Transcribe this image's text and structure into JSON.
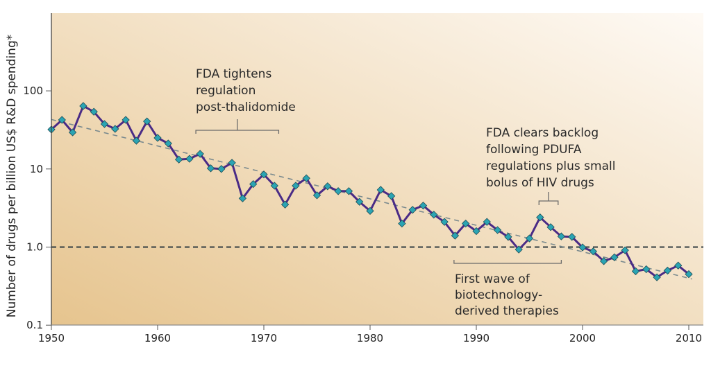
{
  "chart_data": {
    "type": "line",
    "title": "",
    "xlabel": "",
    "ylabel": "Number of drugs per billion US$ R&D spending*",
    "yscale": "log",
    "xlim": [
      1950,
      2011.5
    ],
    "ylim": [
      0.1,
      500
    ],
    "x_ticks": [
      1950,
      1960,
      1970,
      1980,
      1990,
      2000,
      2010
    ],
    "x_tick_labels": [
      "1950",
      "1960",
      "1970",
      "1980",
      "1990",
      "2000",
      "2010"
    ],
    "y_ticks": [
      0.1,
      1.0,
      10,
      100
    ],
    "y_tick_labels": [
      "0.1",
      "1.0",
      "10",
      "100"
    ],
    "grid": false,
    "series": [
      {
        "name": "Drugs per billion US$ R&D",
        "color": "#4a2b86",
        "marker_color": "#2ba4b3",
        "x": [
          1950,
          1951,
          1952,
          1953,
          1954,
          1955,
          1956,
          1957,
          1958,
          1959,
          1960,
          1961,
          1962,
          1963,
          1964,
          1965,
          1966,
          1967,
          1968,
          1969,
          1970,
          1971,
          1972,
          1973,
          1974,
          1975,
          1976,
          1977,
          1978,
          1979,
          1980,
          1981,
          1982,
          1983,
          1984,
          1985,
          1986,
          1987,
          1988,
          1989,
          1990,
          1991,
          1992,
          1993,
          1994,
          1995,
          1996,
          1997,
          1998,
          1999,
          2000,
          2001,
          2002,
          2003,
          2004,
          2005,
          2006,
          2007,
          2008,
          2009,
          2010
        ],
        "values": [
          32,
          42.5,
          29.4,
          64,
          54,
          37.6,
          32.6,
          42.5,
          23,
          40.7,
          25,
          21.2,
          13.2,
          13.5,
          15.6,
          10.2,
          10,
          12,
          4.2,
          6.4,
          8.5,
          6.1,
          3.5,
          6.1,
          7.6,
          4.6,
          6.0,
          5.2,
          5.2,
          3.8,
          2.9,
          5.4,
          4.5,
          2.0,
          3.0,
          3.4,
          2.6,
          2.1,
          1.4,
          2.0,
          1.6,
          2.1,
          1.65,
          1.35,
          0.93,
          1.29,
          2.4,
          1.8,
          1.37,
          1.35,
          0.99,
          0.88,
          0.66,
          0.74,
          0.91,
          0.49,
          0.52,
          0.41,
          0.5,
          0.58,
          0.45
        ]
      }
    ],
    "trend_line": {
      "name": "Exponential trend",
      "x": [
        1950,
        2010.3
      ],
      "values": [
        43,
        0.39
      ],
      "color": "#7a8a8e",
      "style": "dashed"
    },
    "reference_line": {
      "name": "1.0 reference",
      "value": 1.0,
      "color": "#2f3b40",
      "style": "dashed"
    },
    "annotations": [
      {
        "name": "fda-tightens",
        "lines": [
          "FDA tightens",
          "regulation",
          "post-thalidomide"
        ],
        "bracket_x": [
          1963.6,
          1971.4
        ],
        "bracket_value": 27
      },
      {
        "name": "fda-clears-backlog",
        "lines": [
          "FDA clears backlog",
          "following PDUFA",
          "regulations plus small",
          "bolus of HIV drugs"
        ],
        "bracket_x": [
          1995.9,
          1997.7
        ],
        "bracket_value": 3.1
      },
      {
        "name": "first-wave-biotech",
        "lines": [
          "First wave of",
          "biotechnology-",
          "derived therapies"
        ],
        "bracket_x": [
          1987.9,
          1998.0
        ],
        "bracket_value": 0.68
      }
    ],
    "background": {
      "from": "#e6c48e",
      "to": "#fefaf5"
    }
  }
}
